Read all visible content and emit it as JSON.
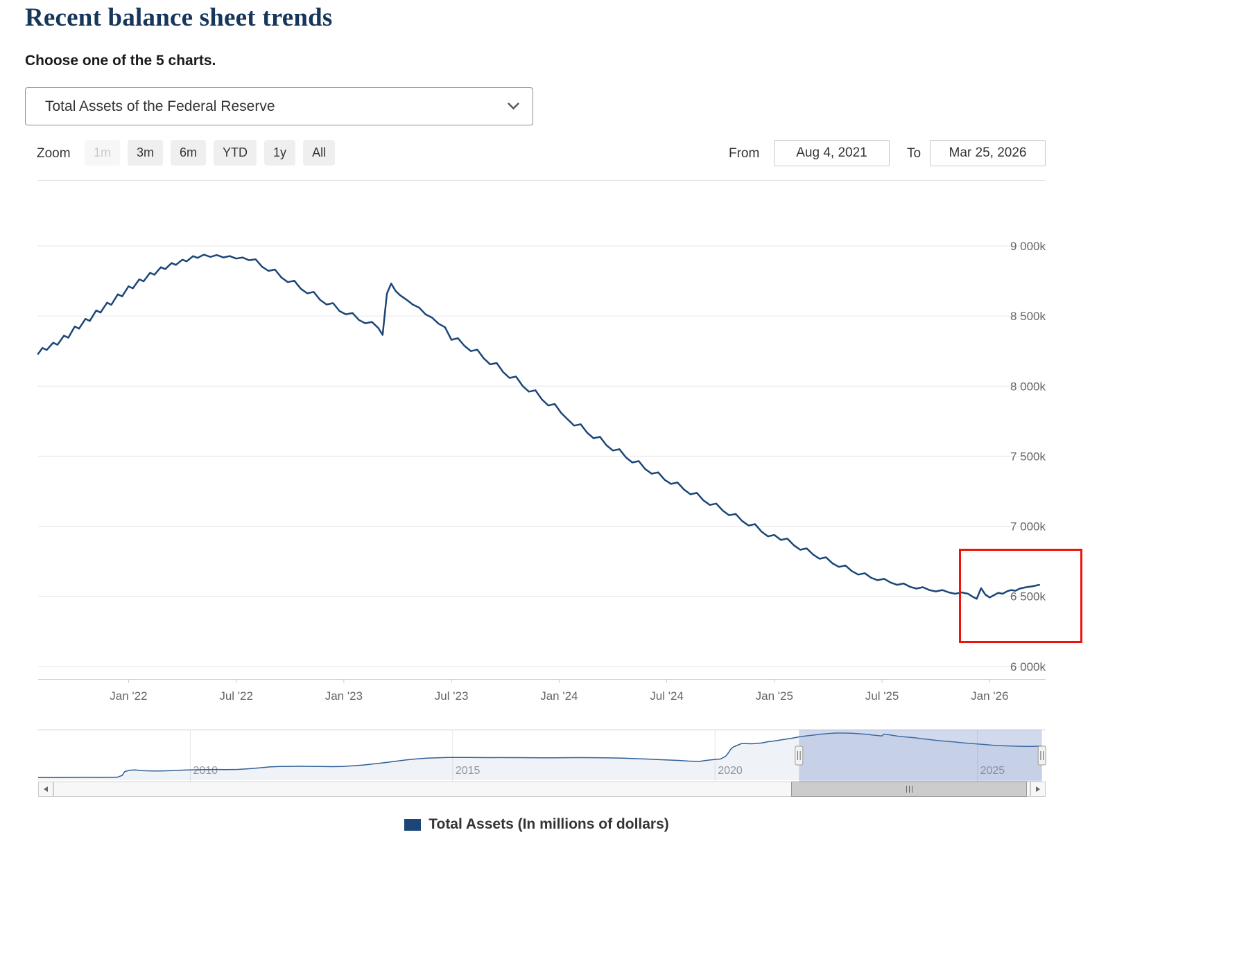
{
  "page": {
    "title": "Recent balance sheet trends",
    "subtitle": "Choose one of the 5 charts."
  },
  "chart_selector": {
    "selected": "Total Assets of the Federal Reserve"
  },
  "zoom": {
    "label": "Zoom",
    "buttons": [
      {
        "label": "1m",
        "enabled": false
      },
      {
        "label": "3m",
        "enabled": true
      },
      {
        "label": "6m",
        "enabled": true
      },
      {
        "label": "YTD",
        "enabled": true
      },
      {
        "label": "1y",
        "enabled": true
      },
      {
        "label": "All",
        "enabled": true
      }
    ]
  },
  "range_selector": {
    "from_label": "From",
    "from_value": "Aug 4, 2021",
    "to_label": "To",
    "to_value": "Mar 25, 2026"
  },
  "legend": {
    "label": "Total Assets (In millions of dollars)"
  },
  "colors": {
    "line": "#1b4677",
    "grid": "#e6e6e6",
    "axis": "#cccccc",
    "axis_label": "#666666",
    "nav_label": "#999999",
    "nav_line": "#2f5f96",
    "nav_fill": "rgba(47,95,150,0.08)",
    "mask": "rgba(102,133,194,0.3)",
    "annotation": "#ee1409",
    "legend_swatch": "#1b4677",
    "title": "#16365c"
  },
  "chart_data": {
    "type": "line",
    "title": "Total Assets of the Federal Reserve",
    "ylabel": "Total Assets (In millions of dollars)",
    "xlabel": "",
    "grid": "horizontal",
    "legend_position": "bottom-center",
    "y_axis_side": "right",
    "x_range": [
      2021.58,
      2026.26
    ],
    "y_ticks": [
      6000,
      6500,
      7000,
      7500,
      8000,
      8500,
      9000
    ],
    "y_tick_labels": [
      "6 000k",
      "6 500k",
      "7 000k",
      "7 500k",
      "8 000k",
      "8 500k",
      "9 000k"
    ],
    "x_ticks": [
      2022.0,
      2022.5,
      2023.0,
      2023.5,
      2024.0,
      2024.5,
      2025.0,
      2025.5,
      2026.0
    ],
    "x_tick_labels": [
      "Jan '22",
      "Jul '22",
      "Jan '23",
      "Jul '23",
      "Jan '24",
      "Jul '24",
      "Jan '25",
      "Jul '25",
      "Jan '26"
    ],
    "unit": "k = thousands of millions of dollars",
    "series": [
      {
        "name": "Total Assets (In millions of dollars)",
        "points": [
          [
            2021.58,
            8230
          ],
          [
            2021.6,
            8272
          ],
          [
            2021.62,
            8258
          ],
          [
            2021.65,
            8310
          ],
          [
            2021.67,
            8295
          ],
          [
            2021.7,
            8360
          ],
          [
            2021.72,
            8345
          ],
          [
            2021.75,
            8425
          ],
          [
            2021.77,
            8410
          ],
          [
            2021.8,
            8480
          ],
          [
            2021.82,
            8465
          ],
          [
            2021.85,
            8540
          ],
          [
            2021.87,
            8525
          ],
          [
            2021.9,
            8595
          ],
          [
            2021.92,
            8580
          ],
          [
            2021.95,
            8655
          ],
          [
            2021.97,
            8640
          ],
          [
            2022.0,
            8712
          ],
          [
            2022.02,
            8698
          ],
          [
            2022.05,
            8762
          ],
          [
            2022.07,
            8748
          ],
          [
            2022.1,
            8808
          ],
          [
            2022.12,
            8795
          ],
          [
            2022.15,
            8848
          ],
          [
            2022.17,
            8835
          ],
          [
            2022.2,
            8878
          ],
          [
            2022.22,
            8865
          ],
          [
            2022.25,
            8902
          ],
          [
            2022.27,
            8890
          ],
          [
            2022.3,
            8928
          ],
          [
            2022.32,
            8915
          ],
          [
            2022.35,
            8938
          ],
          [
            2022.38,
            8922
          ],
          [
            2022.41,
            8935
          ],
          [
            2022.44,
            8918
          ],
          [
            2022.47,
            8928
          ],
          [
            2022.5,
            8910
          ],
          [
            2022.53,
            8918
          ],
          [
            2022.56,
            8898
          ],
          [
            2022.59,
            8905
          ],
          [
            2022.62,
            8852
          ],
          [
            2022.65,
            8822
          ],
          [
            2022.68,
            8832
          ],
          [
            2022.71,
            8775
          ],
          [
            2022.74,
            8742
          ],
          [
            2022.77,
            8752
          ],
          [
            2022.8,
            8695
          ],
          [
            2022.83,
            8662
          ],
          [
            2022.86,
            8672
          ],
          [
            2022.89,
            8615
          ],
          [
            2022.92,
            8582
          ],
          [
            2022.95,
            8592
          ],
          [
            2022.98,
            8535
          ],
          [
            2023.01,
            8512
          ],
          [
            2023.04,
            8522
          ],
          [
            2023.07,
            8472
          ],
          [
            2023.1,
            8448
          ],
          [
            2023.13,
            8458
          ],
          [
            2023.16,
            8415
          ],
          [
            2023.18,
            8365
          ],
          [
            2023.2,
            8660
          ],
          [
            2023.22,
            8732
          ],
          [
            2023.24,
            8680
          ],
          [
            2023.26,
            8650
          ],
          [
            2023.29,
            8618
          ],
          [
            2023.32,
            8582
          ],
          [
            2023.35,
            8560
          ],
          [
            2023.38,
            8512
          ],
          [
            2023.41,
            8488
          ],
          [
            2023.44,
            8445
          ],
          [
            2023.47,
            8420
          ],
          [
            2023.5,
            8330
          ],
          [
            2023.53,
            8342
          ],
          [
            2023.56,
            8288
          ],
          [
            2023.59,
            8250
          ],
          [
            2023.62,
            8260
          ],
          [
            2023.65,
            8198
          ],
          [
            2023.68,
            8155
          ],
          [
            2023.71,
            8165
          ],
          [
            2023.74,
            8100
          ],
          [
            2023.77,
            8058
          ],
          [
            2023.8,
            8068
          ],
          [
            2023.83,
            8002
          ],
          [
            2023.86,
            7960
          ],
          [
            2023.89,
            7970
          ],
          [
            2023.92,
            7905
          ],
          [
            2023.95,
            7862
          ],
          [
            2023.98,
            7872
          ],
          [
            2024.01,
            7808
          ],
          [
            2024.04,
            7762
          ],
          [
            2024.07,
            7718
          ],
          [
            2024.1,
            7728
          ],
          [
            2024.13,
            7668
          ],
          [
            2024.16,
            7628
          ],
          [
            2024.19,
            7638
          ],
          [
            2024.22,
            7578
          ],
          [
            2024.25,
            7540
          ],
          [
            2024.28,
            7550
          ],
          [
            2024.31,
            7492
          ],
          [
            2024.34,
            7455
          ],
          [
            2024.37,
            7465
          ],
          [
            2024.4,
            7408
          ],
          [
            2024.43,
            7375
          ],
          [
            2024.46,
            7385
          ],
          [
            2024.49,
            7332
          ],
          [
            2024.52,
            7302
          ],
          [
            2024.55,
            7312
          ],
          [
            2024.58,
            7262
          ],
          [
            2024.61,
            7228
          ],
          [
            2024.64,
            7238
          ],
          [
            2024.67,
            7185
          ],
          [
            2024.7,
            7152
          ],
          [
            2024.73,
            7162
          ],
          [
            2024.76,
            7112
          ],
          [
            2024.79,
            7078
          ],
          [
            2024.82,
            7088
          ],
          [
            2024.85,
            7038
          ],
          [
            2024.88,
            7005
          ],
          [
            2024.91,
            7015
          ],
          [
            2024.94,
            6962
          ],
          [
            2024.97,
            6928
          ],
          [
            2025.0,
            6938
          ],
          [
            2025.03,
            6902
          ],
          [
            2025.06,
            6912
          ],
          [
            2025.09,
            6865
          ],
          [
            2025.12,
            6832
          ],
          [
            2025.15,
            6842
          ],
          [
            2025.18,
            6798
          ],
          [
            2025.21,
            6768
          ],
          [
            2025.24,
            6778
          ],
          [
            2025.27,
            6735
          ],
          [
            2025.3,
            6710
          ],
          [
            2025.33,
            6720
          ],
          [
            2025.36,
            6680
          ],
          [
            2025.39,
            6655
          ],
          [
            2025.42,
            6665
          ],
          [
            2025.45,
            6632
          ],
          [
            2025.48,
            6615
          ],
          [
            2025.51,
            6625
          ],
          [
            2025.54,
            6598
          ],
          [
            2025.57,
            6582
          ],
          [
            2025.6,
            6592
          ],
          [
            2025.63,
            6568
          ],
          [
            2025.66,
            6555
          ],
          [
            2025.69,
            6565
          ],
          [
            2025.72,
            6545
          ],
          [
            2025.75,
            6535
          ],
          [
            2025.78,
            6545
          ],
          [
            2025.81,
            6528
          ],
          [
            2025.84,
            6518
          ],
          [
            2025.87,
            6528
          ],
          [
            2025.9,
            6518
          ],
          [
            2025.92,
            6498
          ],
          [
            2025.94,
            6482
          ],
          [
            2025.96,
            6558
          ],
          [
            2025.98,
            6512
          ],
          [
            2026.0,
            6492
          ],
          [
            2026.02,
            6508
          ],
          [
            2026.04,
            6525
          ],
          [
            2026.06,
            6518
          ],
          [
            2026.08,
            6535
          ],
          [
            2026.1,
            6545
          ],
          [
            2026.12,
            6540
          ],
          [
            2026.14,
            6555
          ],
          [
            2026.17,
            6565
          ],
          [
            2026.2,
            6572
          ],
          [
            2026.23,
            6582
          ]
        ]
      }
    ]
  },
  "navigator": {
    "x_range": [
      2007.1,
      2026.3
    ],
    "selected_range": [
      2021.6,
      2026.23
    ],
    "x_ticks": [
      2010,
      2015,
      2020,
      2025
    ],
    "x_tick_labels": [
      "2010",
      "2015",
      "2020",
      "2025"
    ],
    "points": [
      [
        2007.1,
        860
      ],
      [
        2007.5,
        870
      ],
      [
        2008.0,
        900
      ],
      [
        2008.3,
        890
      ],
      [
        2008.6,
        910
      ],
      [
        2008.7,
        1250
      ],
      [
        2008.75,
        1950
      ],
      [
        2008.85,
        2200
      ],
      [
        2008.95,
        2260
      ],
      [
        2009.1,
        2100
      ],
      [
        2009.3,
        2060
      ],
      [
        2009.5,
        2080
      ],
      [
        2009.7,
        2140
      ],
      [
        2009.9,
        2230
      ],
      [
        2010.1,
        2280
      ],
      [
        2010.3,
        2320
      ],
      [
        2010.5,
        2330
      ],
      [
        2010.7,
        2300
      ],
      [
        2010.9,
        2340
      ],
      [
        2011.1,
        2450
      ],
      [
        2011.3,
        2610
      ],
      [
        2011.5,
        2790
      ],
      [
        2011.7,
        2870
      ],
      [
        2011.9,
        2900
      ],
      [
        2012.1,
        2920
      ],
      [
        2012.3,
        2900
      ],
      [
        2012.5,
        2870
      ],
      [
        2012.7,
        2850
      ],
      [
        2012.9,
        2880
      ],
      [
        2013.1,
        2990
      ],
      [
        2013.3,
        3140
      ],
      [
        2013.5,
        3340
      ],
      [
        2013.7,
        3560
      ],
      [
        2013.9,
        3800
      ],
      [
        2014.1,
        4050
      ],
      [
        2014.3,
        4230
      ],
      [
        2014.5,
        4380
      ],
      [
        2014.7,
        4450
      ],
      [
        2014.9,
        4500
      ],
      [
        2015.1,
        4510
      ],
      [
        2015.3,
        4500
      ],
      [
        2015.5,
        4490
      ],
      [
        2015.7,
        4480
      ],
      [
        2015.9,
        4490
      ],
      [
        2016.1,
        4480
      ],
      [
        2016.3,
        4470
      ],
      [
        2016.5,
        4460
      ],
      [
        2016.7,
        4450
      ],
      [
        2016.9,
        4450
      ],
      [
        2017.1,
        4460
      ],
      [
        2017.3,
        4470
      ],
      [
        2017.5,
        4470
      ],
      [
        2017.7,
        4460
      ],
      [
        2017.9,
        4450
      ],
      [
        2018.1,
        4410
      ],
      [
        2018.3,
        4360
      ],
      [
        2018.5,
        4290
      ],
      [
        2018.7,
        4220
      ],
      [
        2018.9,
        4140
      ],
      [
        2019.1,
        4050
      ],
      [
        2019.3,
        3970
      ],
      [
        2019.5,
        3850
      ],
      [
        2019.7,
        3790
      ],
      [
        2019.8,
        3950
      ],
      [
        2019.9,
        4050
      ],
      [
        2020.0,
        4150
      ],
      [
        2020.1,
        4220
      ],
      [
        2020.2,
        4700
      ],
      [
        2020.25,
        5300
      ],
      [
        2020.3,
        6000
      ],
      [
        2020.35,
        6400
      ],
      [
        2020.4,
        6600
      ],
      [
        2020.5,
        7010
      ],
      [
        2020.6,
        7000
      ],
      [
        2020.7,
        6980
      ],
      [
        2020.8,
        7050
      ],
      [
        2020.9,
        7150
      ],
      [
        2021.0,
        7350
      ],
      [
        2021.1,
        7450
      ],
      [
        2021.2,
        7600
      ],
      [
        2021.3,
        7750
      ],
      [
        2021.4,
        7900
      ],
      [
        2021.5,
        8050
      ],
      [
        2021.6,
        8240
      ],
      [
        2021.75,
        8420
      ],
      [
        2021.9,
        8580
      ],
      [
        2022.0,
        8700
      ],
      [
        2022.15,
        8830
      ],
      [
        2022.3,
        8930
      ],
      [
        2022.45,
        8920
      ],
      [
        2022.6,
        8890
      ],
      [
        2022.75,
        8800
      ],
      [
        2022.9,
        8680
      ],
      [
        2023.0,
        8560
      ],
      [
        2023.1,
        8470
      ],
      [
        2023.18,
        8395
      ],
      [
        2023.22,
        8730
      ],
      [
        2023.35,
        8560
      ],
      [
        2023.5,
        8330
      ],
      [
        2023.65,
        8210
      ],
      [
        2023.8,
        8070
      ],
      [
        2023.95,
        7900
      ],
      [
        2024.1,
        7730
      ],
      [
        2024.25,
        7560
      ],
      [
        2024.4,
        7430
      ],
      [
        2024.55,
        7320
      ],
      [
        2024.7,
        7170
      ],
      [
        2024.85,
        7050
      ],
      [
        2025.0,
        6940
      ],
      [
        2025.15,
        6845
      ],
      [
        2025.3,
        6715
      ],
      [
        2025.45,
        6640
      ],
      [
        2025.6,
        6595
      ],
      [
        2025.75,
        6540
      ],
      [
        2025.9,
        6515
      ],
      [
        2026.0,
        6490
      ],
      [
        2026.05,
        6505
      ],
      [
        2026.15,
        6545
      ],
      [
        2026.23,
        6582
      ]
    ]
  }
}
